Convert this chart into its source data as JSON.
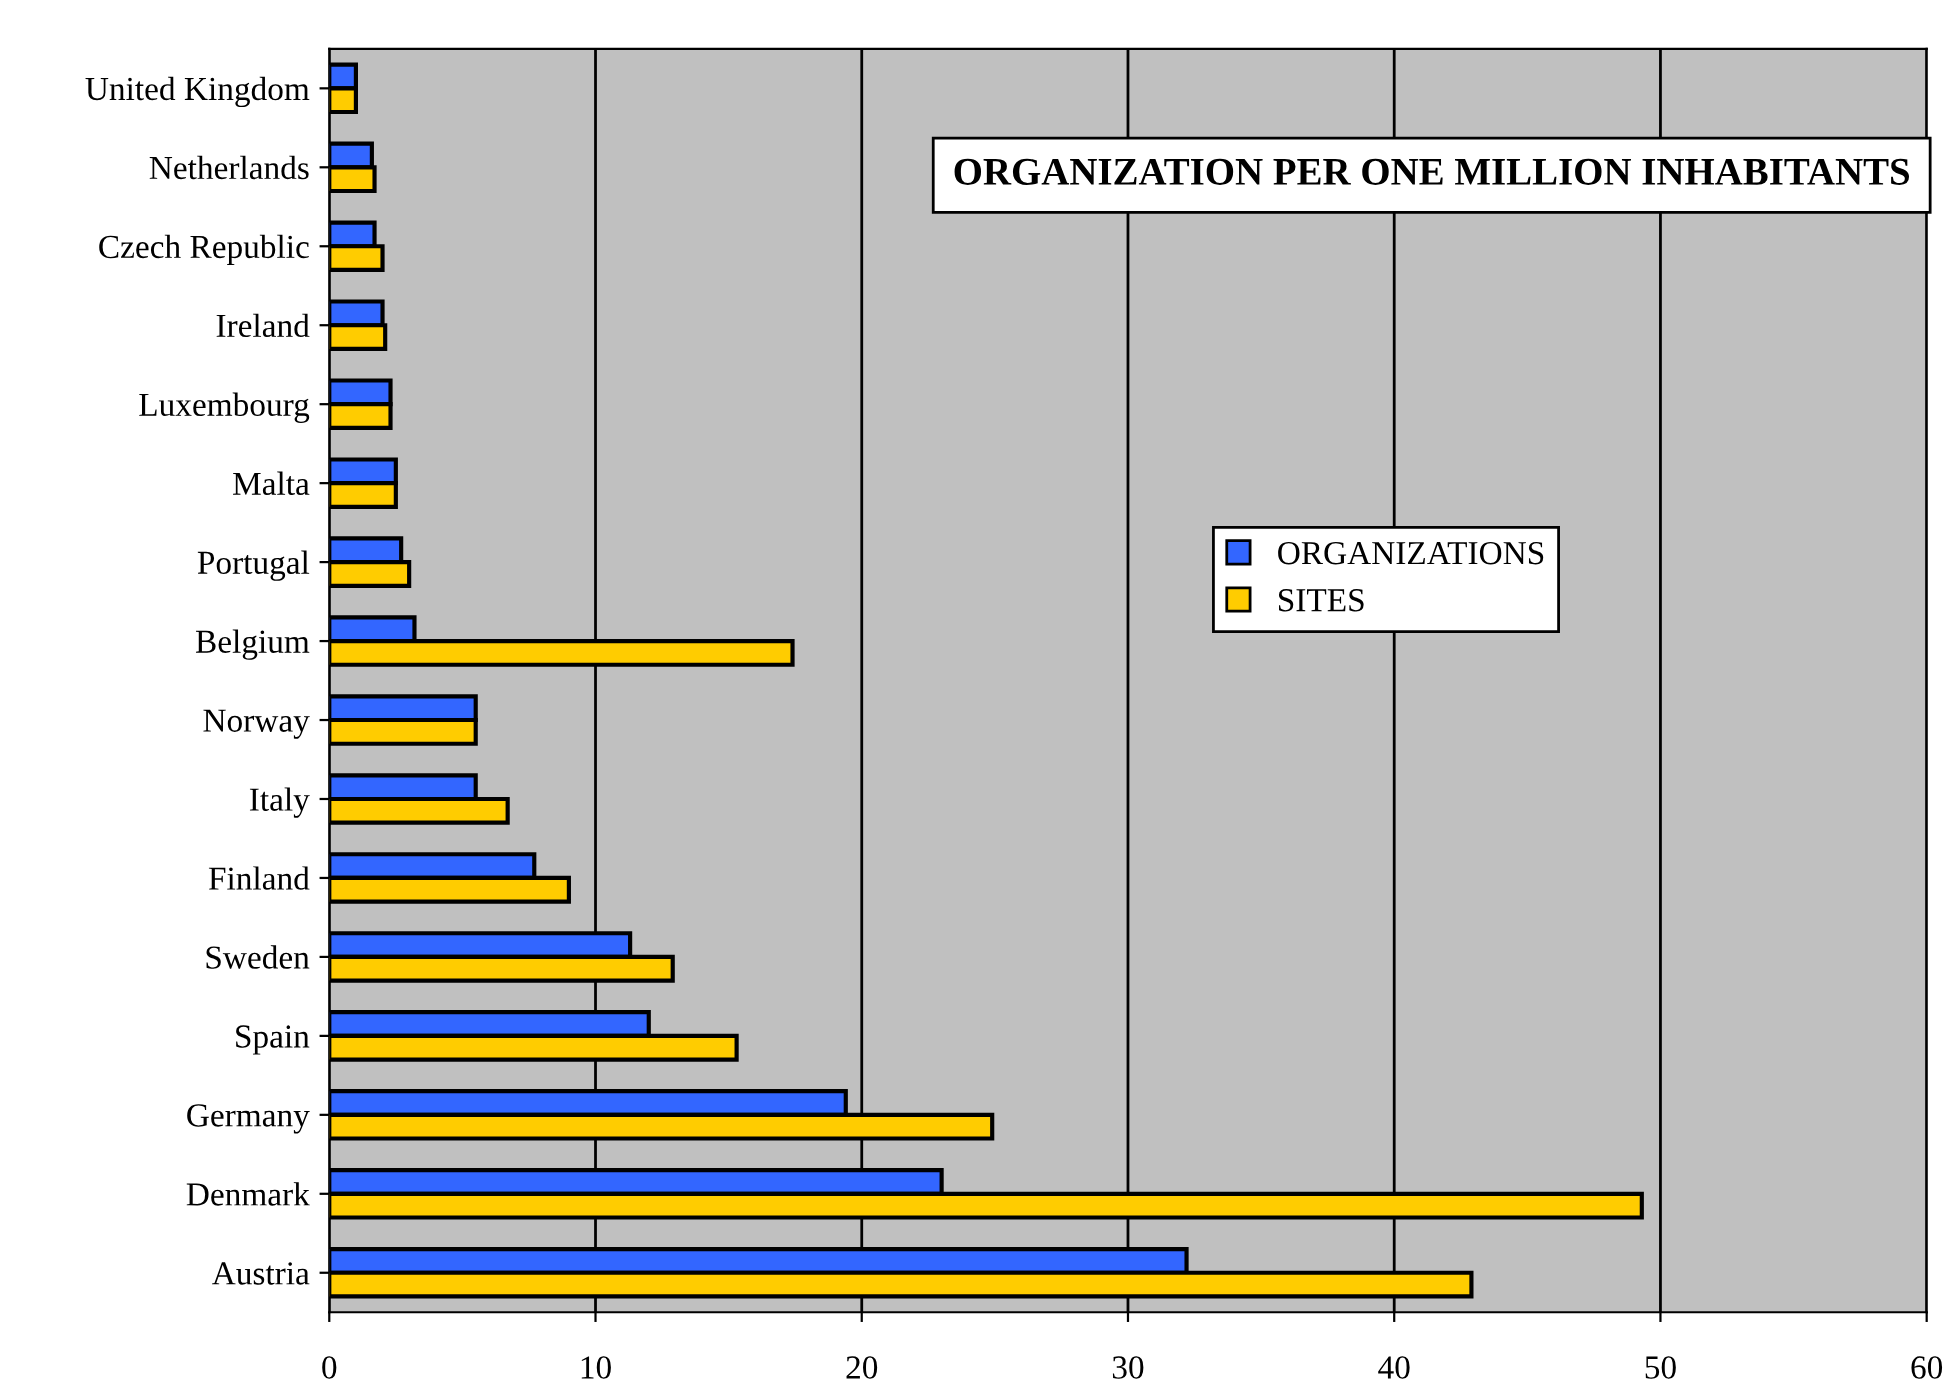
{
  "chart_data": {
    "type": "bar",
    "orientation": "horizontal",
    "categories": [
      "United Kingdom",
      "Netherlands",
      "Czech Republic",
      "Ireland",
      "Luxembourg",
      "Malta",
      "Portugal",
      "Belgium",
      "Norway",
      "Italy",
      "Finland",
      "Sweden",
      "Spain",
      "Germany",
      "Denmark",
      "Austria"
    ],
    "series": [
      {
        "name": "ORGANIZATIONS",
        "color": "#3366ff",
        "values": [
          1.0,
          1.6,
          1.7,
          2.0,
          2.3,
          2.5,
          2.7,
          3.2,
          5.5,
          5.5,
          7.7,
          11.3,
          12.0,
          19.4,
          23.0,
          32.2
        ]
      },
      {
        "name": "SITES",
        "color": "#ffcc00",
        "values": [
          1.0,
          1.7,
          2.0,
          2.1,
          2.3,
          2.5,
          3.0,
          17.4,
          5.5,
          6.7,
          9.0,
          12.9,
          15.3,
          24.9,
          49.3,
          42.9
        ]
      }
    ],
    "annotations": [
      "ORGANIZATION PER ONE MILLION INHABITANTS"
    ],
    "xlim": [
      0,
      60
    ],
    "xticks": [
      0,
      10,
      20,
      30,
      40,
      50,
      60
    ],
    "grid": "x",
    "legend": "right"
  }
}
